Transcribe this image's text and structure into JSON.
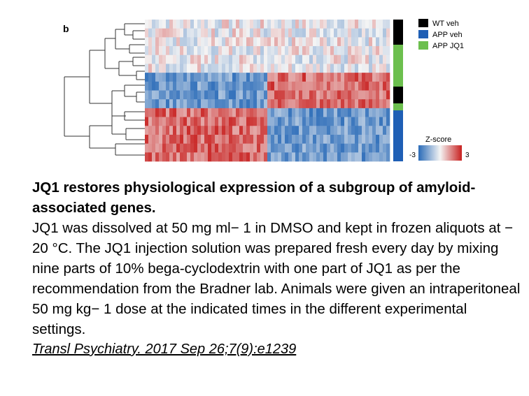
{
  "figure": {
    "panel_label": "b",
    "legend": [
      {
        "label": "WT veh",
        "color": "#000000"
      },
      {
        "label": "APP veh",
        "color": "#1f5fb5"
      },
      {
        "label": "APP JQ1",
        "color": "#6cbf4e"
      }
    ],
    "colorbar": {
      "title": "Z-score",
      "min_label": "-3",
      "max_label": "3",
      "low_color": "#2a6bb8",
      "mid_color": "#f4f4f4",
      "high_color": "#c8201f"
    }
  },
  "chart_data": {
    "type": "heatmap",
    "title": "",
    "xlabel": "",
    "ylabel": "",
    "gene_clusters": [
      {
        "rows": 6,
        "left_half": "mixed",
        "right_half": "mixed"
      },
      {
        "rows": 4,
        "left_half": "blue",
        "right_half": "red"
      },
      {
        "rows": 6,
        "left_half": "red",
        "right_half": "blue"
      }
    ],
    "sample_groups": [
      "WT veh",
      "APP JQ1",
      "WT veh",
      "APP JQ1",
      "APP veh"
    ],
    "z_range": [
      -3,
      3
    ]
  },
  "caption": {
    "title": "JQ1 restores physiological expression of a subgroup of amyloid-associated genes.",
    "body": "JQ1 was dissolved at 50 mg ml− 1 in DMSO and kept in frozen aliquots at − 20 °C. The JQ1 injection solution was prepared fresh every day by mixing nine parts of 10% bega-cyclodextrin with one part of JQ1 as per the recommendation from the Bradner lab. Animals were given an intraperitoneal 50 mg kg− 1 dose at the indicated times in the different experimental settings.",
    "citation": "Transl Psychiatry. 2017 Sep 26;7(9):e1239"
  }
}
